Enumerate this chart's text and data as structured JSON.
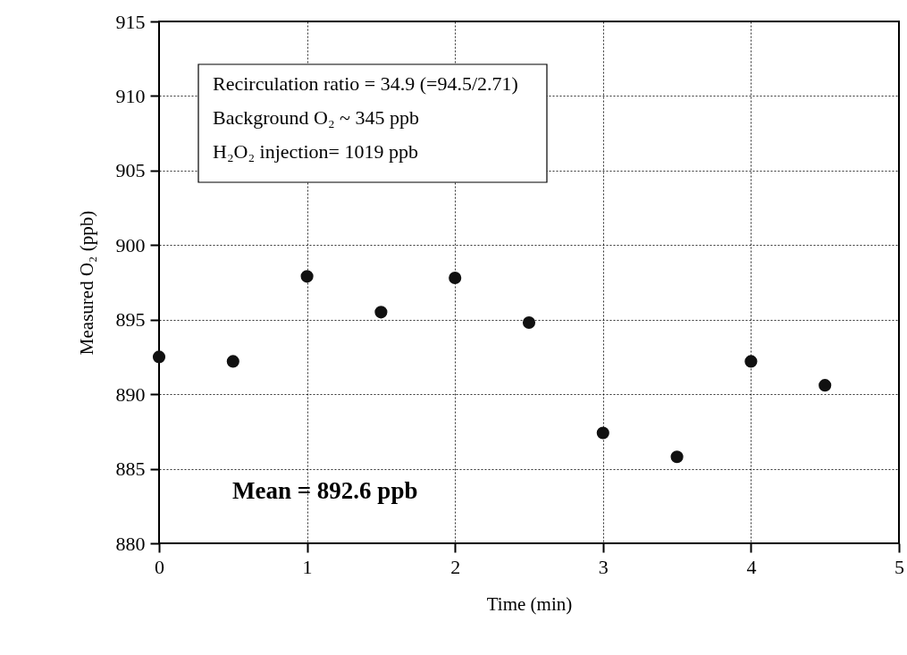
{
  "chart_data": {
    "type": "scatter",
    "xlabel": "Time (min)",
    "ylabel": "Measured O₂ (ppb)",
    "x": [
      0,
      0.5,
      1,
      1.5,
      2,
      2.5,
      3,
      3.5,
      4,
      4.5
    ],
    "series": [
      {
        "color": "#111111",
        "values": [
          892.5,
          892.2,
          897.9,
          895.5,
          897.8,
          894.8,
          887.4,
          885.8,
          892.2,
          890.6
        ]
      }
    ],
    "xlim": [
      0,
      5
    ],
    "xticks": [
      0,
      1,
      2,
      3,
      4,
      5
    ],
    "ylim": [
      880,
      915
    ],
    "yticks": [
      880,
      885,
      890,
      895,
      900,
      905,
      910,
      915
    ],
    "grid": true,
    "marker": "circle",
    "annotations": [
      "Recirculation ratio = 34.9 (=94.5/2.71)\nBackground O₂ ~ 345 ppb\nH₂O₂ injection= 1019 ppb",
      "Mean = 892.6 ppb"
    ]
  }
}
